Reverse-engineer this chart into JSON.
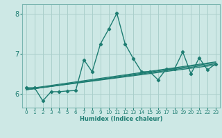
{
  "xlabel": "Humidex (Indice chaleur)",
  "bg_color": "#cde8e5",
  "grid_color": "#aacfcb",
  "line_color": "#1e7d72",
  "spine_color": "#7ab5b0",
  "xlim": [
    -0.5,
    23.5
  ],
  "ylim": [
    5.65,
    8.25
  ],
  "yticks": [
    6,
    7,
    8
  ],
  "xticks": [
    0,
    1,
    2,
    3,
    4,
    5,
    6,
    7,
    8,
    9,
    10,
    11,
    12,
    13,
    14,
    15,
    16,
    17,
    18,
    19,
    20,
    21,
    22,
    23
  ],
  "series_main": {
    "x": [
      0,
      1,
      2,
      3,
      4,
      5,
      6,
      7,
      8,
      9,
      10,
      11,
      12,
      13,
      14,
      15,
      16,
      17,
      18,
      19,
      20,
      21,
      22,
      23
    ],
    "y": [
      6.15,
      6.15,
      5.82,
      6.05,
      6.05,
      6.07,
      6.08,
      6.85,
      6.55,
      7.25,
      7.62,
      8.02,
      7.25,
      6.88,
      6.55,
      6.55,
      6.35,
      6.62,
      6.62,
      7.05,
      6.5,
      6.9,
      6.6,
      6.75
    ]
  },
  "series_trends": [
    {
      "x": [
        0,
        23
      ],
      "y": [
        6.1,
        6.72
      ]
    },
    {
      "x": [
        0,
        23
      ],
      "y": [
        6.1,
        6.75
      ]
    },
    {
      "x": [
        0,
        23
      ],
      "y": [
        6.1,
        6.78
      ]
    },
    {
      "x": [
        0,
        23
      ],
      "y": [
        6.12,
        6.8
      ]
    }
  ]
}
